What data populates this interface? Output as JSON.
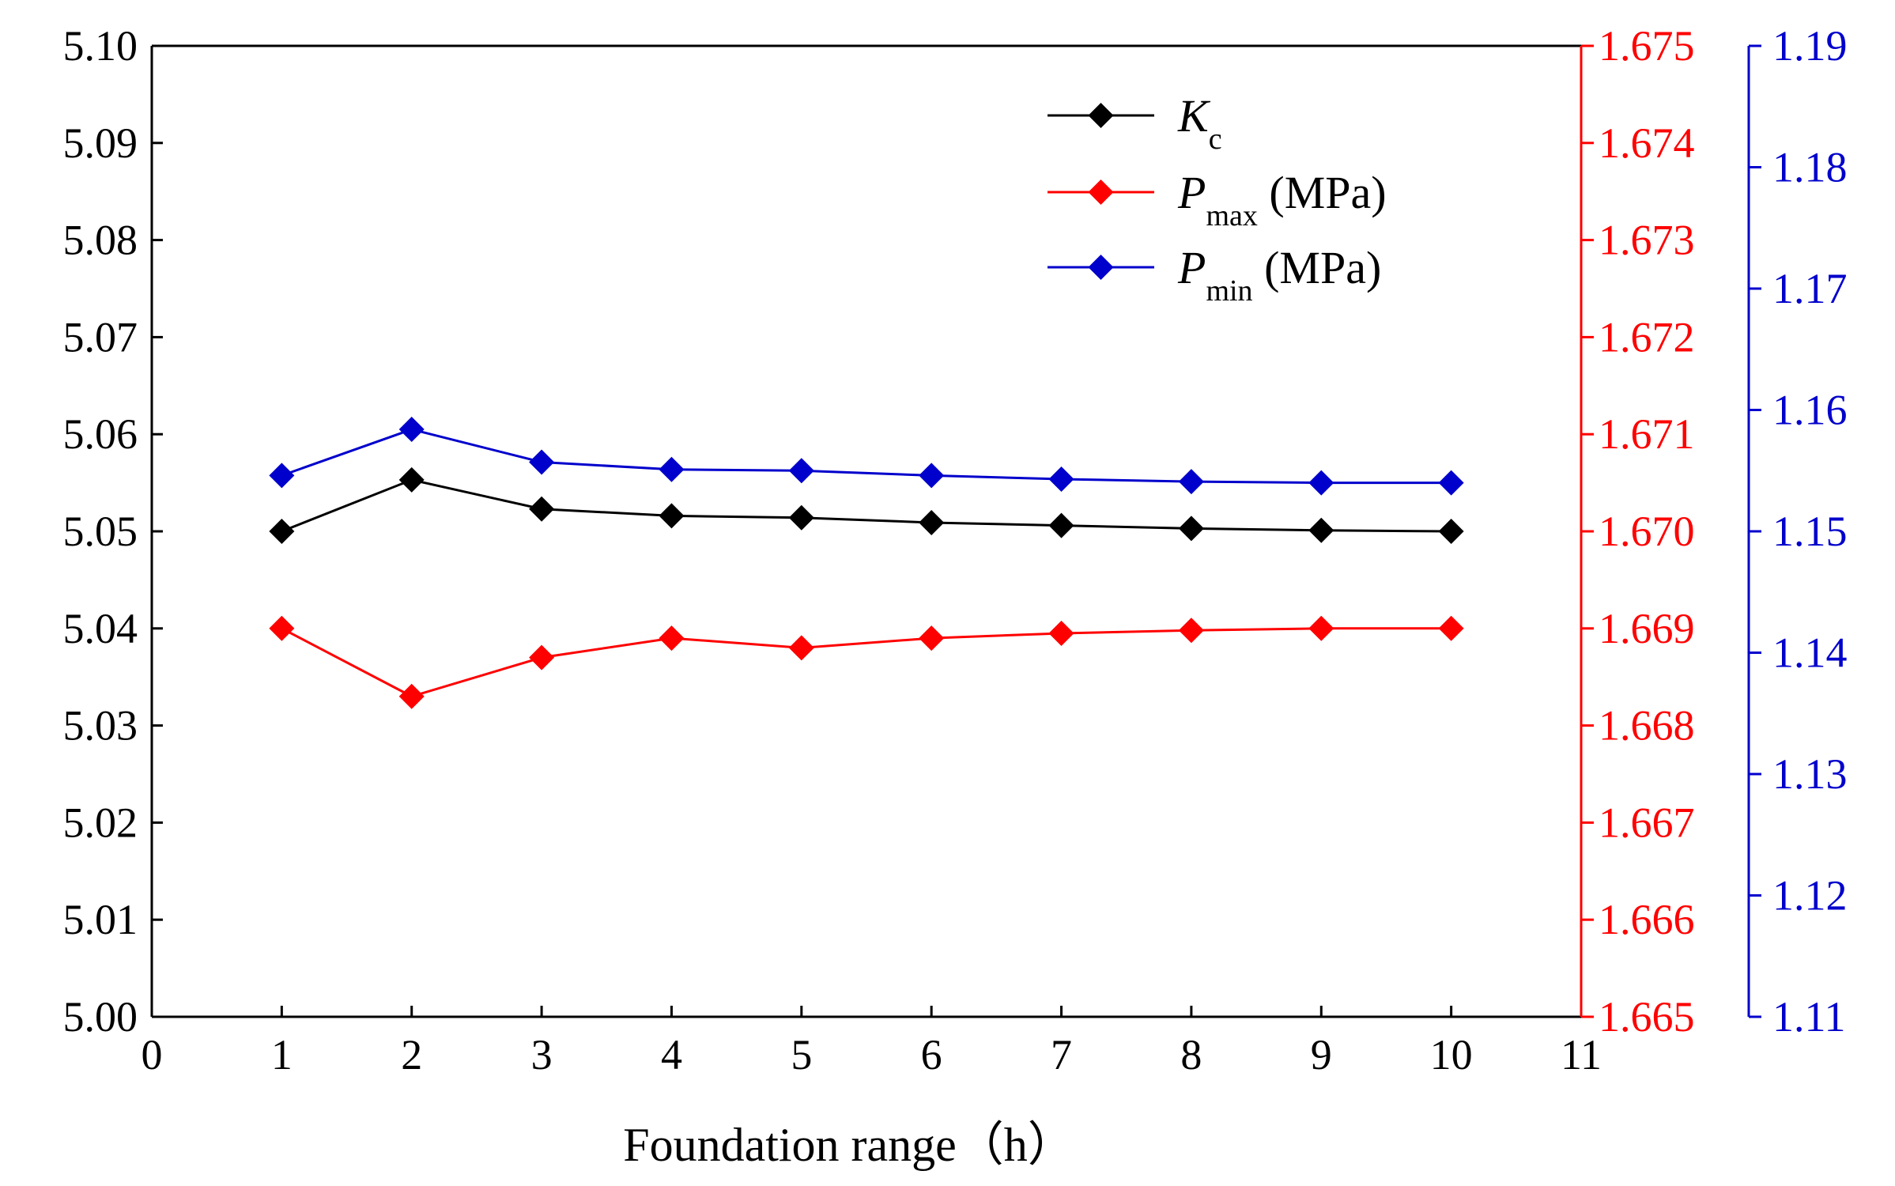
{
  "chart_data": {
    "type": "line",
    "xlabel": "Foundation range（h）",
    "xlim": [
      0,
      11
    ],
    "x_ticks": [
      "0",
      "1",
      "2",
      "3",
      "4",
      "5",
      "6",
      "7",
      "8",
      "9",
      "10",
      "11"
    ],
    "x": [
      1,
      2,
      3,
      4,
      5,
      6,
      7,
      8,
      9,
      10
    ],
    "grid": false,
    "legend_position": "top-center",
    "axes": {
      "left": {
        "ylim": [
          5.0,
          5.1
        ],
        "ticks": [
          "5.00",
          "5.01",
          "5.02",
          "5.03",
          "5.04",
          "5.05",
          "5.06",
          "5.07",
          "5.08",
          "5.09",
          "5.10"
        ],
        "color": "#000000"
      },
      "right1": {
        "ylim": [
          1.665,
          1.675
        ],
        "ticks": [
          "1.665",
          "1.666",
          "1.667",
          "1.668",
          "1.669",
          "1.670",
          "1.671",
          "1.672",
          "1.673",
          "1.674",
          "1.675"
        ],
        "color": "#ff0000"
      },
      "right2": {
        "ylim": [
          1.11,
          1.19
        ],
        "ticks": [
          "1.11",
          "1.12",
          "1.13",
          "1.14",
          "1.15",
          "1.16",
          "1.17",
          "1.18",
          "1.19"
        ],
        "color": "#0000cc"
      }
    },
    "series": [
      {
        "name": "Kc",
        "legend": {
          "main": "K",
          "sub": "c",
          "suffix": ""
        },
        "axis": "left",
        "color": "#000000",
        "marker": "diamond",
        "values": [
          5.05,
          5.0553,
          5.0523,
          5.0516,
          5.0514,
          5.0509,
          5.0506,
          5.0503,
          5.0501,
          5.05
        ]
      },
      {
        "name": "Pmax (MPa)",
        "legend": {
          "main": "P",
          "sub": "max",
          "suffix": " (MPa)"
        },
        "axis": "right1",
        "color": "#ff0000",
        "marker": "diamond",
        "values": [
          1.669,
          1.6683,
          1.6687,
          1.6689,
          1.6688,
          1.6689,
          1.66895,
          1.66898,
          1.669,
          1.669
        ]
      },
      {
        "name": "Pmin (MPa)",
        "legend": {
          "main": "P",
          "sub": "min",
          "suffix": " (MPa)"
        },
        "axis": "right2",
        "color": "#0000cc",
        "marker": "diamond",
        "values": [
          1.1546,
          1.1584,
          1.1557,
          1.1551,
          1.155,
          1.1546,
          1.1543,
          1.1541,
          1.154,
          1.154
        ]
      }
    ]
  }
}
